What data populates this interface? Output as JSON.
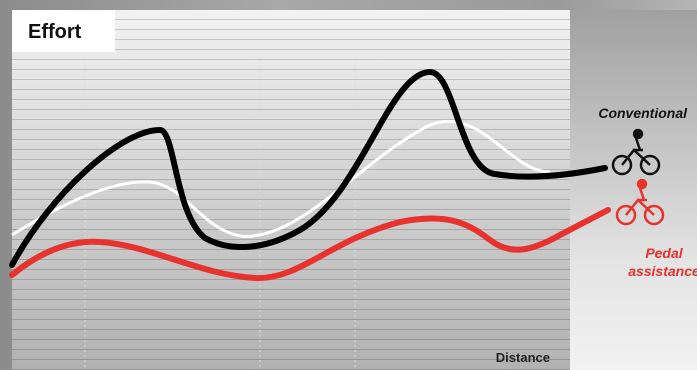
{
  "header": {
    "title": "Effort"
  },
  "labels": {
    "conventional": "Conventional",
    "pedal_assistance": [
      "Pedal",
      "assistance"
    ],
    "distance": "Distance"
  }
}
